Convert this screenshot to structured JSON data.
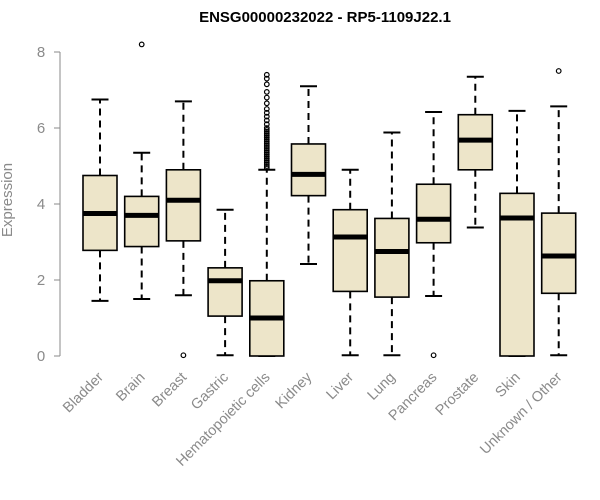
{
  "chart_data": {
    "type": "boxplot",
    "title": "ENSG00000232022 - RP5-1109J22.1",
    "xlabel": "",
    "ylabel": "Expression",
    "ylim": [
      0,
      8
    ],
    "yticks": [
      0,
      2,
      4,
      6,
      8
    ],
    "grid": false,
    "colors": {
      "box_fill": "#ede5c9",
      "stroke": "#000000",
      "axis": "#8a8a8a"
    },
    "categories": [
      "Bladder",
      "Brain",
      "Breast",
      "Gastric",
      "Hematopoietic cells",
      "Kidney",
      "Liver",
      "Lung",
      "Pancreas",
      "Prostate",
      "Skin",
      "Unknown / Other"
    ],
    "boxes": [
      {
        "category": "Bladder",
        "min": 1.45,
        "q1": 2.78,
        "median": 3.75,
        "q3": 4.75,
        "max": 6.75,
        "outliers": []
      },
      {
        "category": "Brain",
        "min": 1.5,
        "q1": 2.88,
        "median": 3.7,
        "q3": 4.2,
        "max": 5.35,
        "outliers": [
          8.2
        ]
      },
      {
        "category": "Breast",
        "min": 1.6,
        "q1": 3.03,
        "median": 4.1,
        "q3": 4.9,
        "max": 6.7,
        "outliers": [
          0.02
        ]
      },
      {
        "category": "Gastric",
        "min": 0.02,
        "q1": 1.05,
        "median": 1.98,
        "q3": 2.32,
        "max": 3.85,
        "outliers": []
      },
      {
        "category": "Hematopoietic cells",
        "min": 0.0,
        "q1": 0.0,
        "median": 1.0,
        "q3": 1.98,
        "max": 4.9,
        "outliers": [
          4.95,
          5.0,
          5.05,
          5.1,
          5.15,
          5.2,
          5.25,
          5.3,
          5.35,
          5.4,
          5.45,
          5.5,
          5.55,
          5.6,
          5.65,
          5.7,
          5.75,
          5.8,
          5.85,
          5.9,
          5.95,
          6.0,
          6.1,
          6.2,
          6.3,
          6.4,
          6.5,
          6.65,
          6.8,
          6.95,
          7.15,
          7.3,
          7.4
        ]
      },
      {
        "category": "Kidney",
        "min": 2.42,
        "q1": 4.22,
        "median": 4.78,
        "q3": 5.58,
        "max": 7.1,
        "outliers": []
      },
      {
        "category": "Liver",
        "min": 0.02,
        "q1": 1.7,
        "median": 3.13,
        "q3": 3.85,
        "max": 4.9,
        "outliers": []
      },
      {
        "category": "Lung",
        "min": 0.02,
        "q1": 1.55,
        "median": 2.75,
        "q3": 3.62,
        "max": 5.88,
        "outliers": []
      },
      {
        "category": "Pancreas",
        "min": 1.58,
        "q1": 2.98,
        "median": 3.6,
        "q3": 4.52,
        "max": 6.42,
        "outliers": [
          0.02
        ]
      },
      {
        "category": "Prostate",
        "min": 3.38,
        "q1": 4.9,
        "median": 5.68,
        "q3": 6.35,
        "max": 7.35,
        "outliers": []
      },
      {
        "category": "Skin",
        "min": 0.0,
        "q1": 0.0,
        "median": 3.63,
        "q3": 4.28,
        "max": 6.45,
        "outliers": []
      },
      {
        "category": "Unknown / Other",
        "min": 0.02,
        "q1": 1.65,
        "median": 2.63,
        "q3": 3.76,
        "max": 6.57,
        "outliers": [
          7.5
        ]
      }
    ]
  }
}
